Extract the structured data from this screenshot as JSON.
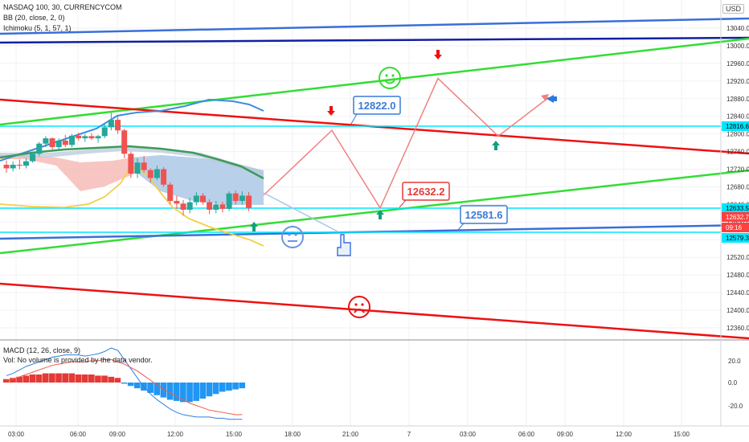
{
  "legend": {
    "symbol": "NASDAQ 100, 30, CURRENCYCOM",
    "bb": "BB (20, close, 2, 0)",
    "ichimoku": "Ichimoku (5, 1, 57, 1)",
    "macd": "MACD (12, 26, close, 9)",
    "vol": "Vol: No volume is provided by the data vendor."
  },
  "price_axis": {
    "unit": "USD",
    "ticks": [
      "13040.0",
      "13000.0",
      "12960.0",
      "12920.0",
      "12880.0",
      "12840.0",
      "12800.0",
      "12760.0",
      "12720.0",
      "12680.0",
      "12640.0",
      "12600.0",
      "12560.0",
      "12520.0",
      "12480.0",
      "12440.0",
      "12400.0",
      "12360.0"
    ],
    "badges": [
      {
        "text": "12816.6",
        "color": "#00e5ff"
      },
      {
        "text": "12633.5",
        "color": "#00e5ff"
      },
      {
        "text": "12632.7",
        "color": "#ff4040"
      },
      {
        "text": "09:16",
        "color": "#ff4040"
      },
      {
        "text": "12579.3",
        "color": "#00e5ff"
      }
    ]
  },
  "macd_axis": {
    "ticks": [
      "20.0",
      "0.0",
      "-20.0"
    ]
  },
  "time_axis": {
    "ticks": [
      "03:00",
      "06:00",
      "09:00",
      "12:00",
      "15:00",
      "18:00",
      "21:00",
      "7",
      "03:00",
      "06:00",
      "09:00",
      "12:00",
      "15:00"
    ]
  },
  "annotations": [
    {
      "text": "12822.0",
      "color": "#3a7bd5"
    },
    {
      "text": "12632.2",
      "color": "#e53935"
    },
    {
      "text": "12581.6",
      "color": "#3a7bd5"
    }
  ],
  "colors": {
    "bull": "#26a69a",
    "bear": "#ef5350",
    "green_line": "#33dd33",
    "red_line": "#ee1111",
    "blue_line": "#3a6fd8",
    "navy_line": "#1020a0",
    "cyan_line": "#00e5ff",
    "path": "#f08080",
    "bb_line": "#3c8de0",
    "yellow_line": "#f3d046",
    "cloud_green": "#3d9a5a"
  },
  "chart_data": {
    "type": "candlestick",
    "symbol": "NASDAQ 100",
    "interval": "30",
    "ylim": [
      12340,
      13060
    ],
    "candles": [
      {
        "o": 12730,
        "h": 12740,
        "l": 12712,
        "c": 12722
      },
      {
        "o": 12722,
        "h": 12738,
        "l": 12715,
        "c": 12730
      },
      {
        "o": 12730,
        "h": 12742,
        "l": 12720,
        "c": 12728
      },
      {
        "o": 12728,
        "h": 12745,
        "l": 12722,
        "c": 12738
      },
      {
        "o": 12738,
        "h": 12758,
        "l": 12735,
        "c": 12755
      },
      {
        "o": 12755,
        "h": 12782,
        "l": 12750,
        "c": 12778
      },
      {
        "o": 12778,
        "h": 12795,
        "l": 12770,
        "c": 12790
      },
      {
        "o": 12790,
        "h": 12792,
        "l": 12765,
        "c": 12770
      },
      {
        "o": 12770,
        "h": 12790,
        "l": 12765,
        "c": 12785
      },
      {
        "o": 12785,
        "h": 12798,
        "l": 12770,
        "c": 12775
      },
      {
        "o": 12775,
        "h": 12800,
        "l": 12770,
        "c": 12796
      },
      {
        "o": 12796,
        "h": 12803,
        "l": 12785,
        "c": 12790
      },
      {
        "o": 12790,
        "h": 12800,
        "l": 12782,
        "c": 12795
      },
      {
        "o": 12795,
        "h": 12802,
        "l": 12786,
        "c": 12790
      },
      {
        "o": 12790,
        "h": 12798,
        "l": 12780,
        "c": 12795
      },
      {
        "o": 12795,
        "h": 12825,
        "l": 12790,
        "c": 12815
      },
      {
        "o": 12815,
        "h": 12848,
        "l": 12808,
        "c": 12832
      },
      {
        "o": 12832,
        "h": 12840,
        "l": 12800,
        "c": 12808
      },
      {
        "o": 12808,
        "h": 12812,
        "l": 12745,
        "c": 12755
      },
      {
        "o": 12755,
        "h": 12760,
        "l": 12700,
        "c": 12710
      },
      {
        "o": 12710,
        "h": 12745,
        "l": 12700,
        "c": 12735
      },
      {
        "o": 12735,
        "h": 12750,
        "l": 12712,
        "c": 12718
      },
      {
        "o": 12718,
        "h": 12722,
        "l": 12690,
        "c": 12700
      },
      {
        "o": 12700,
        "h": 12728,
        "l": 12695,
        "c": 12720
      },
      {
        "o": 12720,
        "h": 12725,
        "l": 12680,
        "c": 12685
      },
      {
        "o": 12685,
        "h": 12690,
        "l": 12640,
        "c": 12648
      },
      {
        "o": 12648,
        "h": 12660,
        "l": 12630,
        "c": 12642
      },
      {
        "o": 12642,
        "h": 12650,
        "l": 12615,
        "c": 12628
      },
      {
        "o": 12628,
        "h": 12655,
        "l": 12620,
        "c": 12645
      },
      {
        "o": 12645,
        "h": 12668,
        "l": 12638,
        "c": 12660
      },
      {
        "o": 12660,
        "h": 12666,
        "l": 12640,
        "c": 12645
      },
      {
        "o": 12645,
        "h": 12652,
        "l": 12618,
        "c": 12628
      },
      {
        "o": 12628,
        "h": 12648,
        "l": 12620,
        "c": 12640
      },
      {
        "o": 12640,
        "h": 12646,
        "l": 12622,
        "c": 12630
      },
      {
        "o": 12630,
        "h": 12670,
        "l": 12625,
        "c": 12665
      },
      {
        "o": 12665,
        "h": 12672,
        "l": 12640,
        "c": 12648
      },
      {
        "o": 12648,
        "h": 12670,
        "l": 12640,
        "c": 12660
      },
      {
        "o": 12660,
        "h": 12668,
        "l": 12625,
        "c": 12632
      }
    ],
    "projected_path": [
      {
        "t": 0,
        "y": 12661
      },
      {
        "t": 1,
        "y": 12808
      },
      {
        "t": 2,
        "y": 12632
      },
      {
        "t": 3,
        "y": 12926
      },
      {
        "t": 4,
        "y": 12795
      },
      {
        "t": 5,
        "y": 12883
      }
    ],
    "macd": {
      "yticks": [
        20,
        0,
        -20
      ],
      "histogram": [
        3,
        4,
        5,
        6,
        7,
        7,
        8,
        8,
        8,
        8,
        8,
        7,
        7,
        7,
        6,
        6,
        5,
        4,
        -1,
        -3,
        -5,
        -7,
        -9,
        -11,
        -13,
        -15,
        -16,
        -17,
        -17,
        -16,
        -14,
        -12,
        -10,
        -8,
        -7,
        -6,
        -5
      ],
      "macd_line": [
        6,
        8,
        11,
        14,
        16,
        18,
        20,
        22,
        23,
        24,
        24,
        24,
        23,
        24,
        25,
        27,
        30,
        28,
        20,
        12,
        4,
        -4,
        -10,
        -15,
        -19,
        -23,
        -26,
        -28,
        -29,
        -30,
        -30,
        -30,
        -31,
        -31,
        -32,
        -32,
        -32
      ],
      "signal_line": [
        2,
        3,
        5,
        7,
        9,
        11,
        13,
        15,
        16,
        17,
        18,
        18,
        18,
        19,
        19,
        20,
        20,
        18,
        16,
        13,
        10,
        6,
        2,
        -2,
        -6,
        -9,
        -12,
        -15,
        -18,
        -20,
        -22,
        -24,
        -25,
        -26,
        -27,
        -28,
        -28
      ]
    }
  }
}
